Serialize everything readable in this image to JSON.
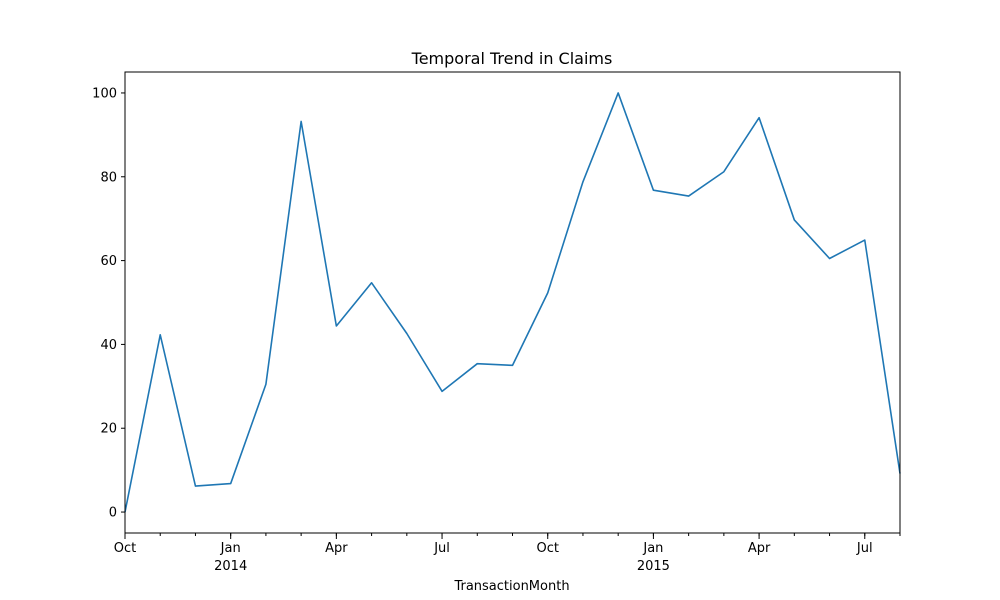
{
  "chart_data": {
    "type": "line",
    "title": "Temporal Trend in Claims",
    "xlabel": "TransactionMonth",
    "ylabel": "",
    "ylim": [
      -5,
      105
    ],
    "yticks": [
      0,
      20,
      40,
      60,
      80,
      100
    ],
    "x": [
      "2013-10",
      "2013-11",
      "2013-12",
      "2014-01",
      "2014-02",
      "2014-03",
      "2014-04",
      "2014-05",
      "2014-06",
      "2014-07",
      "2014-08",
      "2014-09",
      "2014-10",
      "2014-11",
      "2014-12",
      "2015-01",
      "2015-02",
      "2015-03",
      "2015-04",
      "2015-05",
      "2015-06",
      "2015-07",
      "2015-08"
    ],
    "xticks": [
      {
        "x": "2013-10",
        "label": "Oct",
        "sublabel": ""
      },
      {
        "x": "2014-01",
        "label": "Jan",
        "sublabel": "2014"
      },
      {
        "x": "2014-04",
        "label": "Apr",
        "sublabel": ""
      },
      {
        "x": "2014-07",
        "label": "Jul",
        "sublabel": ""
      },
      {
        "x": "2014-10",
        "label": "Oct",
        "sublabel": ""
      },
      {
        "x": "2015-01",
        "label": "Jan",
        "sublabel": "2015"
      },
      {
        "x": "2015-04",
        "label": "Apr",
        "sublabel": ""
      },
      {
        "x": "2015-07",
        "label": "Jul",
        "sublabel": ""
      }
    ],
    "series": [
      {
        "color": "#1f77b4",
        "values": [
          0,
          42.3,
          6.2,
          6.8,
          30.5,
          93.2,
          44.4,
          54.7,
          42.6,
          28.8,
          35.4,
          35.0,
          52.3,
          78.8,
          100.0,
          76.8,
          75.4,
          81.2,
          94.1,
          69.7,
          60.5,
          64.9,
          9.2
        ]
      }
    ],
    "grid": false,
    "legend": "none"
  }
}
